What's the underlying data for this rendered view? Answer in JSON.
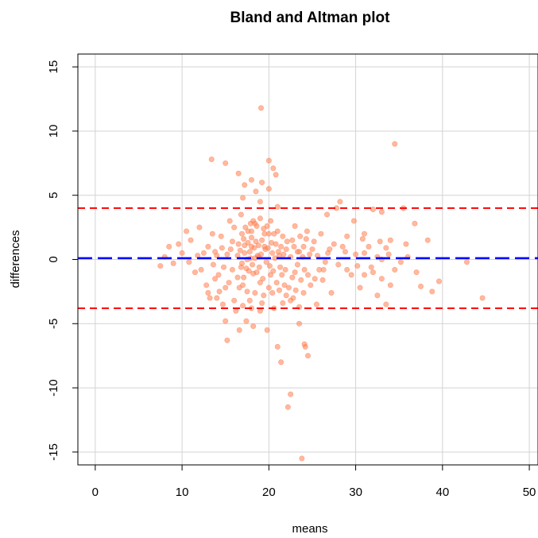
{
  "chart_data": {
    "type": "scatter",
    "title": "Bland and Altman plot",
    "xlabel": "means",
    "ylabel": "differences",
    "xlim": [
      -2,
      51
    ],
    "ylim": [
      -16,
      16
    ],
    "xticks": [
      0,
      10,
      20,
      30,
      40,
      50
    ],
    "yticks": [
      -15,
      -10,
      -5,
      0,
      5,
      10,
      15
    ],
    "grid": true,
    "colors": {
      "points": "#FF7F50",
      "mean_line": "#0000FF",
      "limit_lines": "#FF0000",
      "grid": "#D3D3D3"
    },
    "reference_lines": [
      {
        "role": "mean difference",
        "y": 0.1
      },
      {
        "role": "upper limit of agreement",
        "y": 4.0
      },
      {
        "role": "lower limit of agreement",
        "y": -3.8
      }
    ],
    "points": [
      [
        19.1,
        11.8
      ],
      [
        34.5,
        9.0
      ],
      [
        13.4,
        7.8
      ],
      [
        15.0,
        7.5
      ],
      [
        20.0,
        7.7
      ],
      [
        20.5,
        7.1
      ],
      [
        20.8,
        6.6
      ],
      [
        16.5,
        6.7
      ],
      [
        18.0,
        6.2
      ],
      [
        19.2,
        6.0
      ],
      [
        17.2,
        5.8
      ],
      [
        18.5,
        5.3
      ],
      [
        20.0,
        5.5
      ],
      [
        17.0,
        4.8
      ],
      [
        19.0,
        4.5
      ],
      [
        21.0,
        4.1
      ],
      [
        28.2,
        4.5
      ],
      [
        27.8,
        4.0
      ],
      [
        26.7,
        3.5
      ],
      [
        32.0,
        3.9
      ],
      [
        33.0,
        3.7
      ],
      [
        35.5,
        4.0
      ],
      [
        29.8,
        3.0
      ],
      [
        36.8,
        2.8
      ],
      [
        31.0,
        2.0
      ],
      [
        34.0,
        1.5
      ],
      [
        38.3,
        1.5
      ],
      [
        28.5,
        1.0
      ],
      [
        31.0,
        0.5
      ],
      [
        33.0,
        0.0
      ],
      [
        35.2,
        -0.2
      ],
      [
        30.2,
        -0.5
      ],
      [
        32.0,
        -1.0
      ],
      [
        33.0,
        -1.5
      ],
      [
        34.0,
        -2.0
      ],
      [
        37.5,
        -2.1
      ],
      [
        30.5,
        -2.2
      ],
      [
        38.8,
        -2.5
      ],
      [
        39.6,
        -1.7
      ],
      [
        42.8,
        -0.2
      ],
      [
        44.6,
        -3.0
      ],
      [
        31.0,
        -1.2
      ],
      [
        29.0,
        -0.8
      ],
      [
        32.5,
        -2.8
      ],
      [
        33.5,
        -3.5
      ],
      [
        25.5,
        -3.5
      ],
      [
        23.5,
        -3.7
      ],
      [
        22.5,
        -3.2
      ],
      [
        8.0,
        0.2
      ],
      [
        8.5,
        1.0
      ],
      [
        7.5,
        -0.5
      ],
      [
        9.0,
        -0.3
      ],
      [
        10.0,
        0.5
      ],
      [
        10.5,
        2.2
      ],
      [
        11.0,
        1.5
      ],
      [
        11.5,
        -1.0
      ],
      [
        12.0,
        2.5
      ],
      [
        12.5,
        0.5
      ],
      [
        12.8,
        -2.0
      ],
      [
        13.0,
        1.0
      ],
      [
        13.2,
        -3.0
      ],
      [
        13.5,
        2.0
      ],
      [
        13.8,
        -1.5
      ],
      [
        14.0,
        0.3
      ],
      [
        14.3,
        -2.5
      ],
      [
        14.5,
        1.8
      ],
      [
        14.7,
        -3.5
      ],
      [
        15.0,
        -4.8
      ],
      [
        15.2,
        -6.3
      ],
      [
        15.5,
        3.0
      ],
      [
        15.8,
        -0.8
      ],
      [
        16.0,
        2.5
      ],
      [
        16.2,
        -4.0
      ],
      [
        16.5,
        1.2
      ],
      [
        16.6,
        -5.5
      ],
      [
        16.8,
        3.5
      ],
      [
        17.0,
        -2.0
      ],
      [
        17.2,
        0.5
      ],
      [
        17.4,
        -4.8
      ],
      [
        17.6,
        2.2
      ],
      [
        17.8,
        -3.2
      ],
      [
        18.0,
        1.0
      ],
      [
        18.2,
        -5.2
      ],
      [
        18.4,
        2.8
      ],
      [
        18.6,
        -1.0
      ],
      [
        18.8,
        0.2
      ],
      [
        19.0,
        -4.0
      ],
      [
        19.2,
        1.5
      ],
      [
        19.4,
        -2.8
      ],
      [
        19.6,
        0.8
      ],
      [
        19.8,
        -5.5
      ],
      [
        20.0,
        2.0
      ],
      [
        20.2,
        -1.2
      ],
      [
        20.4,
        0.5
      ],
      [
        20.6,
        -3.8
      ],
      [
        20.8,
        1.2
      ],
      [
        21.0,
        -6.8
      ],
      [
        21.2,
        0.3
      ],
      [
        21.4,
        -8.0
      ],
      [
        21.6,
        1.8
      ],
      [
        21.8,
        -2.0
      ],
      [
        22.0,
        0.8
      ],
      [
        22.2,
        -11.5
      ],
      [
        22.5,
        -10.5
      ],
      [
        22.7,
        1.5
      ],
      [
        23.0,
        -1.0
      ],
      [
        23.3,
        0.6
      ],
      [
        23.5,
        -5.0
      ],
      [
        23.8,
        -15.5
      ],
      [
        24.0,
        1.0
      ],
      [
        24.1,
        -6.6
      ],
      [
        24.2,
        -6.8
      ],
      [
        24.5,
        -7.5
      ],
      [
        24.8,
        -2.0
      ],
      [
        25.0,
        0.8
      ],
      [
        25.3,
        -1.5
      ],
      [
        25.6,
        0.3
      ],
      [
        26.0,
        2.0
      ],
      [
        26.3,
        -0.8
      ],
      [
        26.8,
        0.5
      ],
      [
        27.2,
        -2.6
      ],
      [
        27.5,
        1.2
      ],
      [
        17.5,
        0.0
      ],
      [
        17.8,
        0.6
      ],
      [
        18.1,
        -0.4
      ],
      [
        18.3,
        0.9
      ],
      [
        18.5,
        1.4
      ],
      [
        18.7,
        0.3
      ],
      [
        16.7,
        0.7
      ],
      [
        16.9,
        -0.3
      ],
      [
        17.1,
        1.6
      ],
      [
        17.3,
        2.5
      ],
      [
        17.7,
        -0.9
      ],
      [
        18.9,
        -0.6
      ],
      [
        19.1,
        0.4
      ],
      [
        19.3,
        -1.5
      ],
      [
        19.5,
        1.0
      ],
      [
        19.7,
        -0.2
      ],
      [
        19.9,
        0.9
      ],
      [
        20.1,
        -0.5
      ],
      [
        20.3,
        1.3
      ],
      [
        20.5,
        -0.9
      ],
      [
        20.7,
        0.1
      ],
      [
        20.9,
        -1.8
      ],
      [
        21.1,
        0.6
      ],
      [
        21.3,
        -0.6
      ],
      [
        21.5,
        -1.2
      ],
      [
        21.7,
        0.4
      ],
      [
        21.9,
        -0.8
      ],
      [
        22.1,
        1.4
      ],
      [
        22.3,
        -2.2
      ],
      [
        22.5,
        0.2
      ],
      [
        22.7,
        -1.4
      ],
      [
        22.9,
        1.0
      ],
      [
        23.1,
        -2.4
      ],
      [
        23.3,
        -0.4
      ],
      [
        23.5,
        0.6
      ],
      [
        23.7,
        -1.6
      ],
      [
        23.9,
        0.2
      ],
      [
        24.1,
        -0.8
      ],
      [
        24.3,
        1.6
      ],
      [
        24.5,
        -1.2
      ],
      [
        24.7,
        0.4
      ],
      [
        16.4,
        -1.4
      ],
      [
        16.6,
        -2.2
      ],
      [
        16.8,
        -0.6
      ],
      [
        15.6,
        0.8
      ],
      [
        15.8,
        1.4
      ],
      [
        15.4,
        -1.8
      ],
      [
        15.2,
        0.4
      ],
      [
        14.8,
        -0.6
      ],
      [
        14.6,
        0.9
      ],
      [
        14.2,
        -1.2
      ],
      [
        13.8,
        0.6
      ],
      [
        13.6,
        -0.4
      ],
      [
        18.0,
        2.2
      ],
      [
        18.2,
        3.0
      ],
      [
        18.4,
        -2.6
      ],
      [
        18.6,
        2.6
      ],
      [
        19.0,
        3.2
      ],
      [
        19.4,
        2.4
      ],
      [
        16.9,
        2.0
      ],
      [
        17.1,
        -1.4
      ],
      [
        17.5,
        -2.5
      ],
      [
        17.9,
        2.8
      ],
      [
        19.8,
        2.6
      ],
      [
        20.2,
        3.0
      ],
      [
        21.0,
        2.2
      ],
      [
        22.0,
        -2.8
      ],
      [
        23.0,
        2.6
      ],
      [
        23.6,
        1.8
      ],
      [
        24.4,
        2.2
      ],
      [
        25.2,
        1.4
      ],
      [
        26.2,
        -1.6
      ],
      [
        27.0,
        0.8
      ],
      [
        28.0,
        -0.4
      ],
      [
        29.0,
        1.8
      ],
      [
        30.0,
        0.4
      ],
      [
        31.5,
        1.0
      ],
      [
        32.5,
        0.2
      ],
      [
        33.5,
        0.9
      ],
      [
        34.5,
        -0.8
      ],
      [
        36.0,
        0.2
      ],
      [
        37.0,
        -1.0
      ],
      [
        35.8,
        1.2
      ],
      [
        12.2,
        -0.8
      ],
      [
        11.8,
        0.3
      ],
      [
        10.8,
        -0.2
      ],
      [
        9.6,
        1.2
      ],
      [
        13.0,
        -2.6
      ],
      [
        14.0,
        -3.0
      ],
      [
        15.0,
        -2.2
      ],
      [
        16.0,
        -3.2
      ],
      [
        17.0,
        -3.6
      ],
      [
        18.0,
        -3.8
      ],
      [
        19.2,
        -3.4
      ],
      [
        20.4,
        -2.6
      ],
      [
        21.6,
        -3.4
      ],
      [
        22.8,
        -3.0
      ],
      [
        24.0,
        -2.6
      ],
      [
        17.2,
        1.1
      ],
      [
        17.6,
        1.3
      ],
      [
        18.0,
        1.7
      ],
      [
        18.4,
        0.1
      ],
      [
        18.8,
        1.1
      ],
      [
        17.4,
        -0.7
      ],
      [
        18.2,
        -1.1
      ],
      [
        16.4,
        0.3
      ],
      [
        17.9,
        0.1
      ],
      [
        19.5,
        2.0
      ],
      [
        20.6,
        2.0
      ],
      [
        21.4,
        1.0
      ],
      [
        21.2,
        -2.4
      ],
      [
        20.0,
        -2.2
      ],
      [
        19.0,
        -1.8
      ],
      [
        26.5,
        -0.2
      ],
      [
        25.8,
        -0.8
      ],
      [
        28.8,
        0.6
      ],
      [
        29.5,
        -1.2
      ],
      [
        30.8,
        1.6
      ],
      [
        31.8,
        -0.6
      ],
      [
        32.8,
        1.4
      ],
      [
        33.8,
        0.4
      ]
    ]
  }
}
